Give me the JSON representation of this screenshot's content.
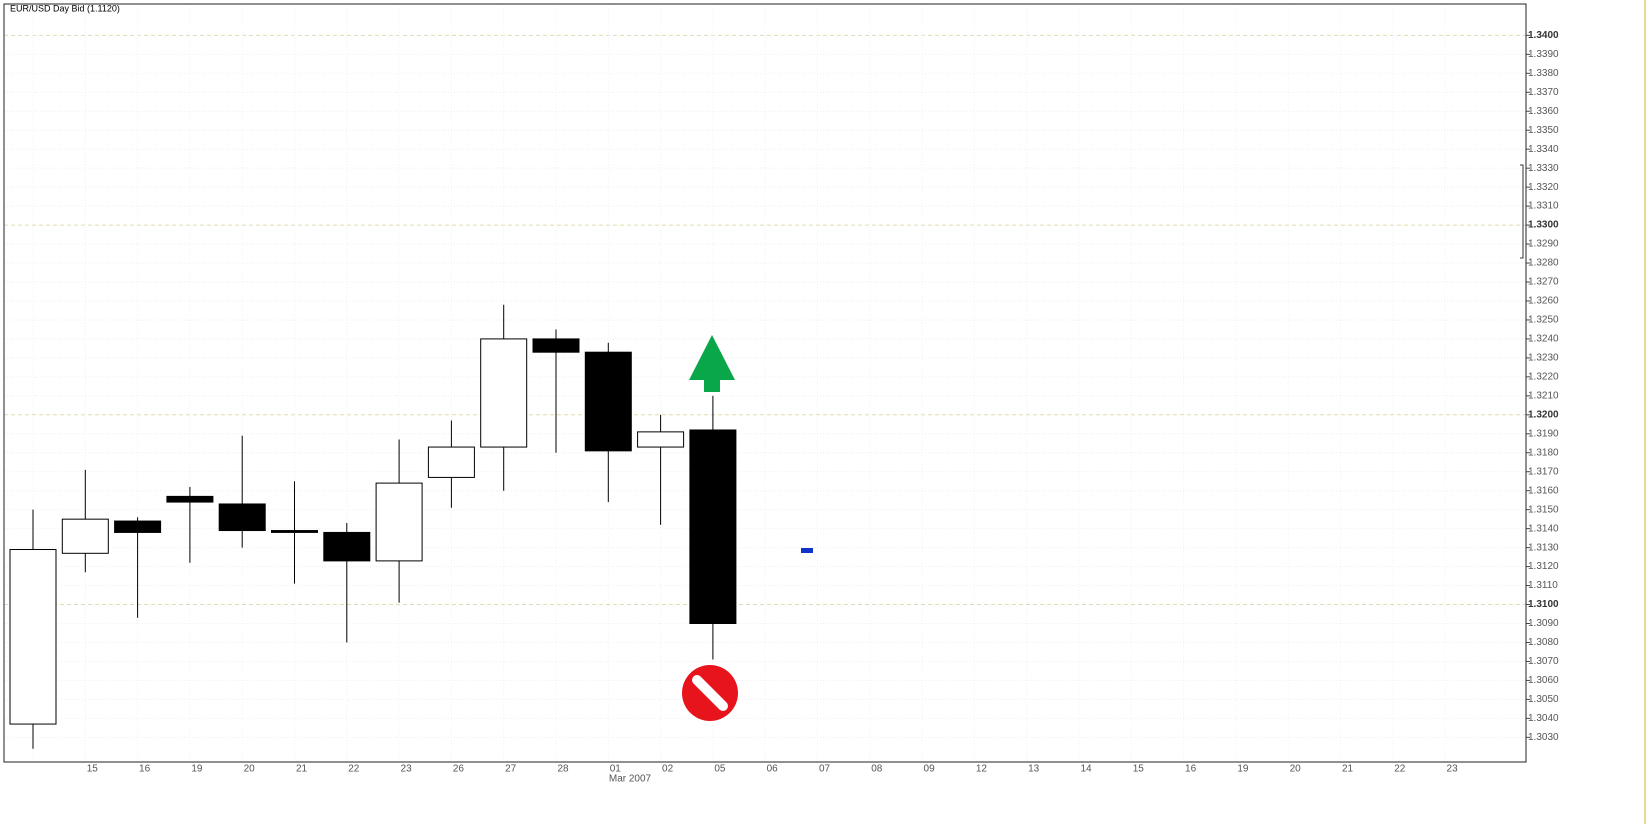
{
  "chart_data": {
    "type": "candlestick",
    "title": "EUR/USD Day Bid (1.1120)",
    "categories": [
      null,
      "15",
      "16",
      "19",
      "20",
      "21",
      "22",
      "23",
      "26",
      "27",
      "28",
      "01",
      "02",
      "05",
      "06",
      "07",
      "08",
      "09",
      "12",
      "13",
      "14",
      "15",
      "16",
      "19",
      "20",
      "21",
      "22",
      "23"
    ],
    "x_group_label": "Mar 2007",
    "open": [
      1.3037,
      1.3127,
      1.3144,
      1.3157,
      1.3153,
      1.3139,
      1.3138,
      1.3123,
      1.3167,
      1.3183,
      1.324,
      1.3233,
      1.3183,
      1.3192,
      null,
      null,
      null,
      null,
      null,
      null,
      null,
      null,
      null,
      null,
      null,
      null,
      null,
      null
    ],
    "high": [
      1.315,
      1.3171,
      1.3146,
      1.3162,
      1.3189,
      1.3165,
      1.3143,
      1.3187,
      1.3197,
      1.3258,
      1.3245,
      1.3238,
      1.32,
      1.321,
      null,
      null,
      null,
      null,
      null,
      null,
      null,
      null,
      null,
      null,
      null,
      null,
      null,
      null
    ],
    "low": [
      1.3024,
      1.3117,
      1.3093,
      1.3122,
      1.313,
      1.3111,
      1.308,
      1.3101,
      1.3151,
      1.316,
      1.318,
      1.3154,
      1.3142,
      1.3071,
      null,
      null,
      null,
      null,
      null,
      null,
      null,
      null,
      null,
      null,
      null,
      null,
      null,
      null
    ],
    "close": [
      1.3129,
      1.3145,
      1.3138,
      1.3154,
      1.3139,
      1.3138,
      1.3123,
      1.3164,
      1.3183,
      1.324,
      1.3233,
      1.3181,
      1.3191,
      1.309,
      null,
      null,
      null,
      null,
      null,
      null,
      null,
      null,
      null,
      null,
      null,
      null,
      null,
      null
    ],
    "up_color": "#ffffff",
    "down_color": "#000000",
    "ylim": [
      1.3017,
      1.3416
    ],
    "yticks": [
      {
        "value": 1.303,
        "label": "1.3030"
      },
      {
        "value": 1.304,
        "label": "1.3040"
      },
      {
        "value": 1.305,
        "label": "1.3050"
      },
      {
        "value": 1.306,
        "label": "1.3060"
      },
      {
        "value": 1.307,
        "label": "1.3070"
      },
      {
        "value": 1.308,
        "label": "1.3080"
      },
      {
        "value": 1.309,
        "label": "1.3090"
      },
      {
        "value": 1.31,
        "label": "1.3100"
      },
      {
        "value": 1.311,
        "label": "1.3110"
      },
      {
        "value": 1.312,
        "label": "1.3120"
      },
      {
        "value": 1.313,
        "label": "1.3130"
      },
      {
        "value": 1.314,
        "label": "1.3140"
      },
      {
        "value": 1.315,
        "label": "1.3150"
      },
      {
        "value": 1.316,
        "label": "1.3160"
      },
      {
        "value": 1.317,
        "label": "1.3170"
      },
      {
        "value": 1.318,
        "label": "1.3180"
      },
      {
        "value": 1.319,
        "label": "1.3190"
      },
      {
        "value": 1.32,
        "label": "1.3200"
      },
      {
        "value": 1.321,
        "label": "1.3210"
      },
      {
        "value": 1.322,
        "label": "1.3220"
      },
      {
        "value": 1.323,
        "label": "1.3230"
      },
      {
        "value": 1.324,
        "label": "1.3240"
      },
      {
        "value": 1.325,
        "label": "1.3250"
      },
      {
        "value": 1.326,
        "label": "1.3260"
      },
      {
        "value": 1.327,
        "label": "1.3270"
      },
      {
        "value": 1.328,
        "label": "1.3280"
      },
      {
        "value": 1.329,
        "label": "1.3290"
      },
      {
        "value": 1.33,
        "label": "1.3300"
      },
      {
        "value": 1.331,
        "label": "1.3310"
      },
      {
        "value": 1.332,
        "label": "1.3320"
      },
      {
        "value": 1.333,
        "label": "1.3330"
      },
      {
        "value": 1.334,
        "label": "1.3340"
      },
      {
        "value": 1.335,
        "label": "1.3350"
      },
      {
        "value": 1.336,
        "label": "1.3360"
      },
      {
        "value": 1.337,
        "label": "1.3370"
      },
      {
        "value": 1.338,
        "label": "1.3380"
      },
      {
        "value": 1.339,
        "label": "1.3390"
      },
      {
        "value": 1.34,
        "label": "1.3400"
      }
    ],
    "grid": true
  }
}
